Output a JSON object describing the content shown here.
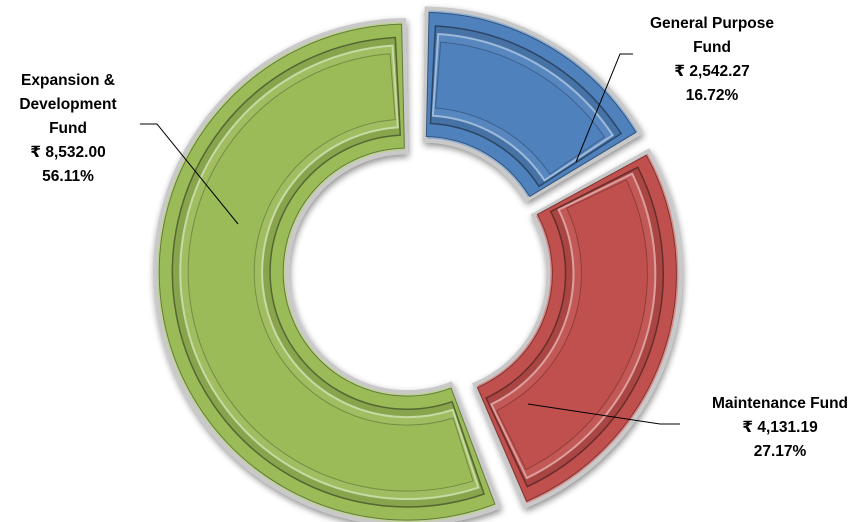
{
  "chart_data": {
    "type": "pie",
    "variant": "doughnut-exploded-beveled",
    "legend": "none",
    "slices": [
      {
        "name": "General Purpose Fund",
        "label_lines": [
          "General Purpose",
          "Fund"
        ],
        "value_text": "₹ 2,542.27",
        "value": 2542.27,
        "percent_text": "16.72%",
        "percent": 16.72,
        "color": "#4f81bd"
      },
      {
        "name": "Maintenance Fund",
        "label_lines": [
          "Maintenance Fund"
        ],
        "value_text": "₹ 4,131.19",
        "value": 4131.19,
        "percent_text": "27.17%",
        "percent": 27.17,
        "color": "#c0504d"
      },
      {
        "name": "Expansion & Development Fund",
        "label_lines": [
          "Expansion &",
          "Development",
          "Fund"
        ],
        "value_text": "₹ 8,532.00",
        "value": 8532.0,
        "percent_text": "56.11%",
        "percent": 56.11,
        "color": "#9bbb59"
      }
    ]
  }
}
